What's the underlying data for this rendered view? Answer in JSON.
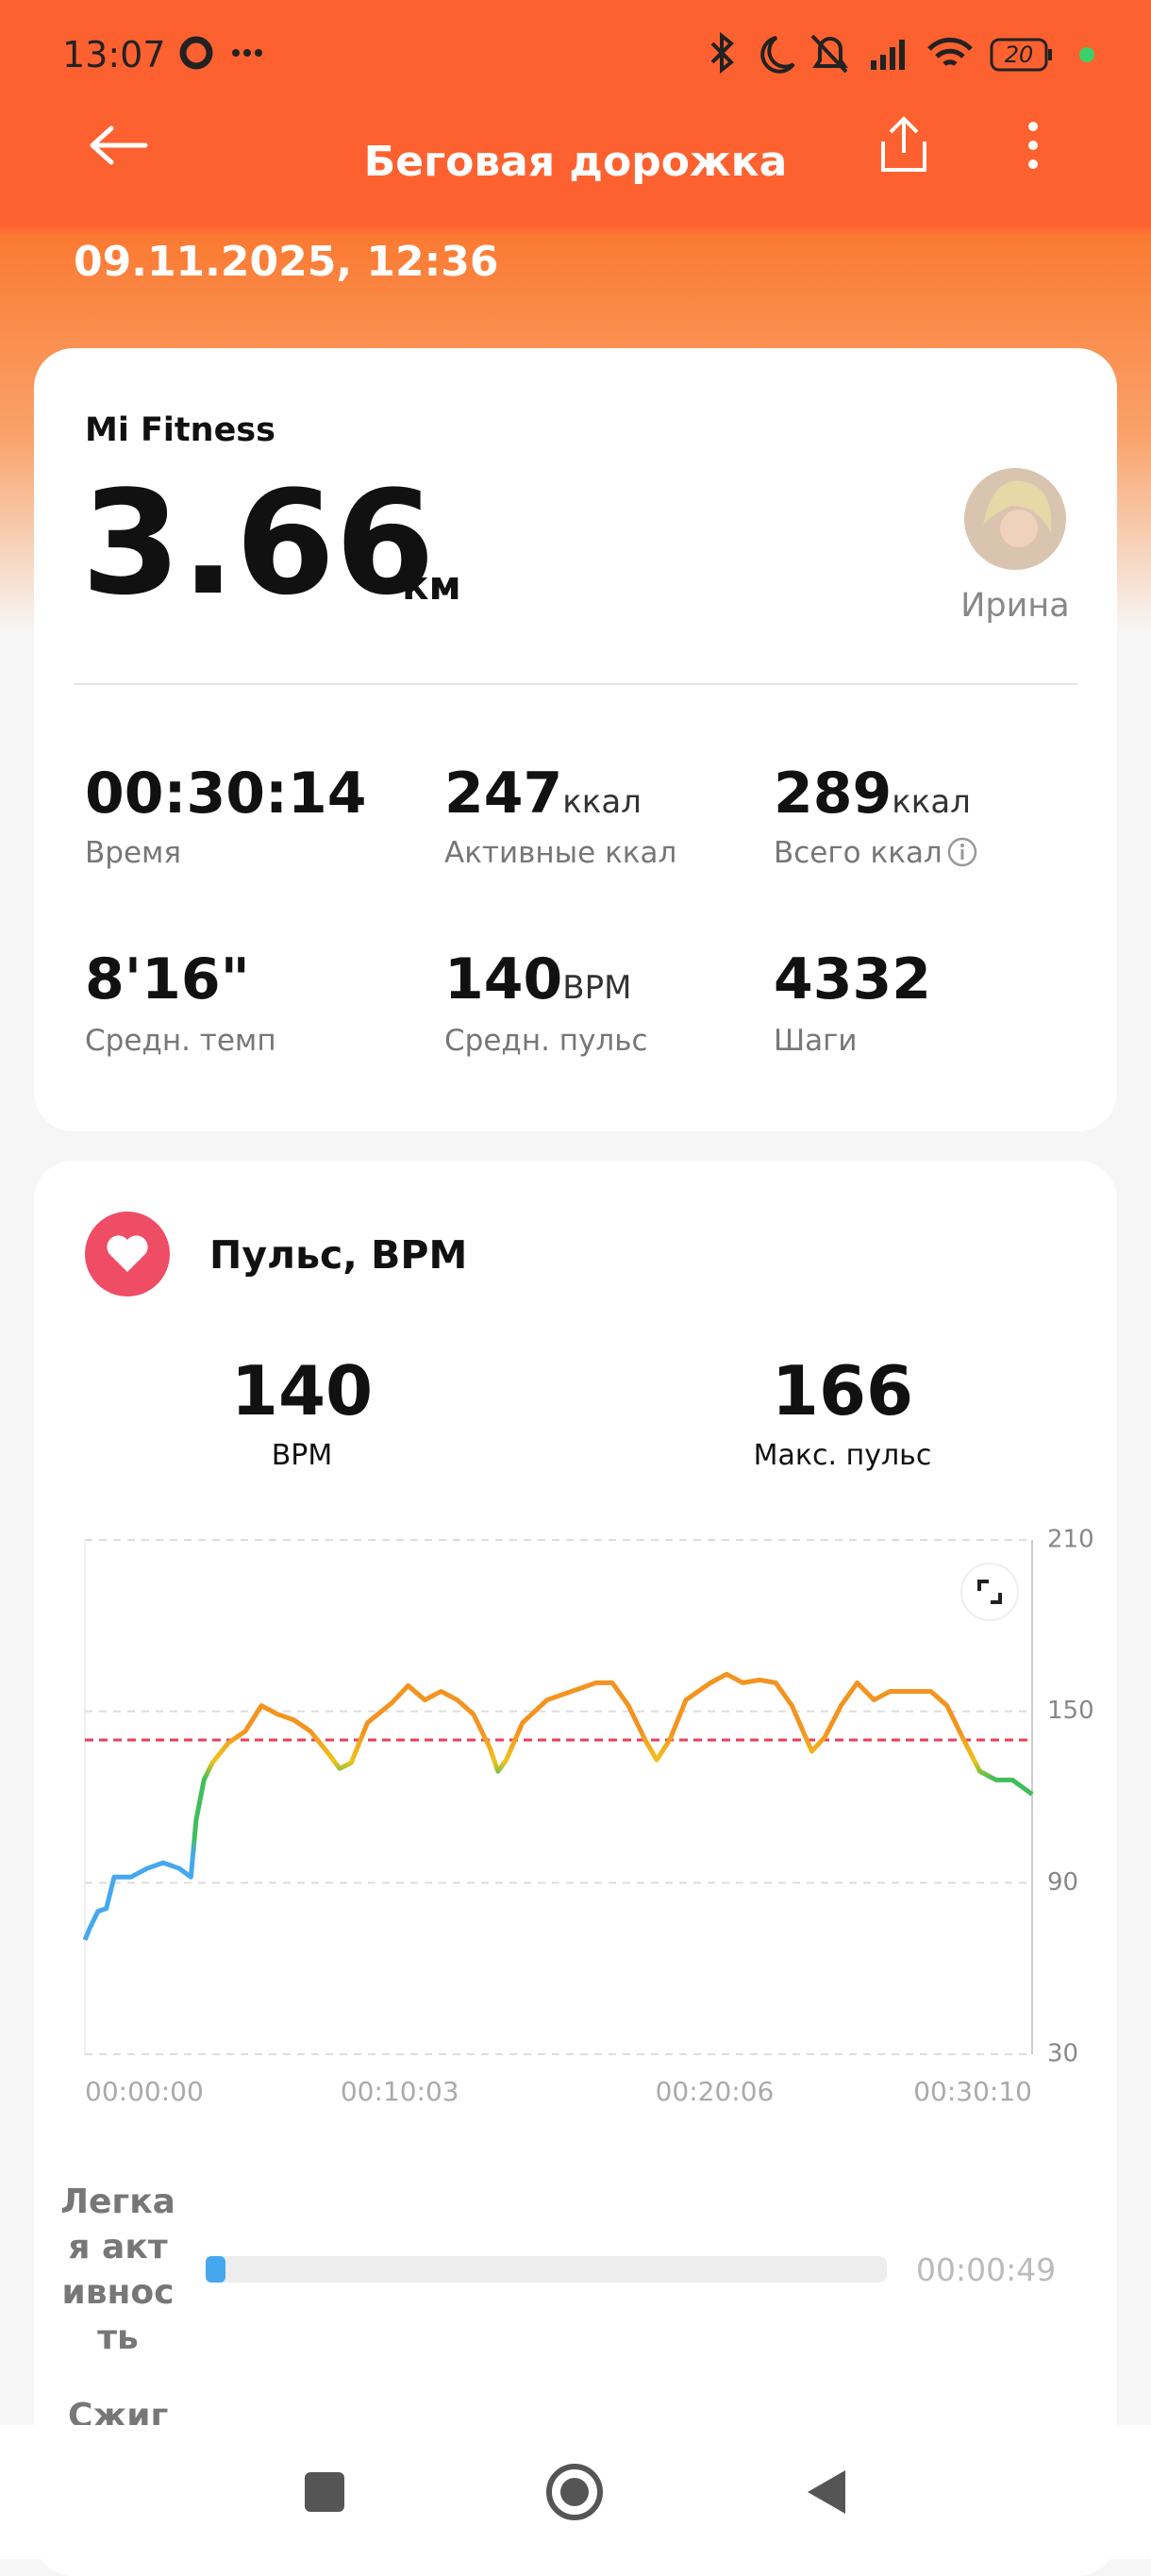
{
  "status_bar": {
    "time": "13:07",
    "battery": "20"
  },
  "header": {
    "title": "Беговая дорожка",
    "date": "09.11.2025, 12:36"
  },
  "summary": {
    "source": "Mi Fitness",
    "distance": "3.66",
    "distance_unit": "км",
    "user": "Ирина",
    "stats": [
      {
        "value": "00:30:14",
        "label": "Время"
      },
      {
        "value": "247",
        "unit": "ккал",
        "label": "Активные ккал"
      },
      {
        "value": "289",
        "unit": "ккал",
        "label": "Всего ккал"
      },
      {
        "value": "8'16\"",
        "label": "Средн. темп"
      },
      {
        "value": "140",
        "unit": "BPM",
        "label": "Средн. пульс"
      },
      {
        "value": "4332",
        "label": "Шаги"
      }
    ]
  },
  "heart_rate": {
    "title": "Пульс, BPM",
    "avg": {
      "value": 140,
      "label": "BPM"
    },
    "max": {
      "value": 166,
      "label": "Макс. пульс"
    },
    "chart": {
      "type": "line",
      "x": [
        0,
        9,
        25,
        41,
        56,
        88,
        119,
        150,
        181,
        203,
        213,
        228,
        244,
        275,
        307,
        338,
        369,
        400,
        432,
        463,
        488,
        510,
        541,
        588,
        619,
        651,
        682,
        713,
        744,
        776,
        791,
        807,
        838,
        885,
        932,
        979,
        1010,
        1041,
        1073,
        1095,
        1120,
        1151,
        1198,
        1229,
        1260,
        1292,
        1323,
        1354,
        1392,
        1417,
        1448,
        1479,
        1511,
        1542,
        1573,
        1620,
        1651,
        1683,
        1714,
        1745,
        1776,
        1814
      ],
      "values": [
        70,
        74,
        80,
        81,
        92,
        92,
        95,
        97,
        95,
        92,
        112,
        126,
        132,
        139,
        143,
        152,
        149,
        147,
        143,
        136,
        130,
        132,
        146,
        153,
        159,
        154,
        157,
        154,
        149,
        137,
        129,
        133,
        146,
        154,
        157,
        160,
        160,
        152,
        140,
        133,
        140,
        154,
        160,
        163,
        160,
        161,
        160,
        152,
        136,
        141,
        152,
        160,
        154,
        157,
        157,
        157,
        152,
        140,
        129,
        126,
        126,
        121
      ],
      "xlim": [
        0,
        1814
      ],
      "ylim": [
        30,
        210
      ],
      "yticks": [
        30,
        90,
        150,
        210
      ],
      "xticks": [
        {
          "value": 0,
          "label": "00:00:00"
        },
        {
          "value": 603,
          "label": "00:10:03"
        },
        {
          "value": 1206,
          "label": "00:20:06"
        },
        {
          "value": 1810,
          "label": "00:30:10"
        }
      ],
      "grid": true,
      "reference_color": "#e8405a"
    }
  },
  "zones": [
    {
      "name": "Легкая активность",
      "duration": "00:00:49"
    },
    {
      "name": "Сжиг"
    }
  ]
}
